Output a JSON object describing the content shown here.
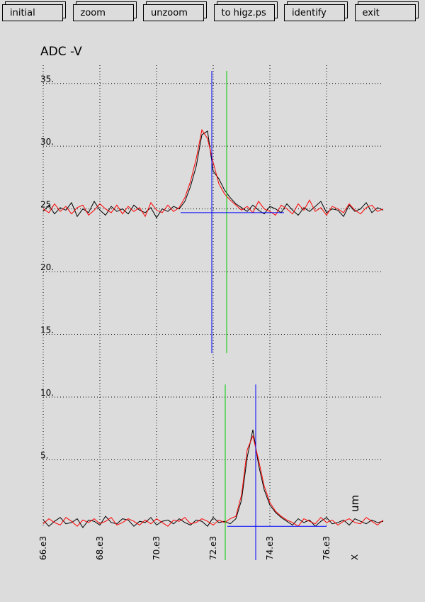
{
  "buttons": [
    "initial",
    "zoom",
    "unzoom",
    "to higz.ps",
    "identify",
    "exit"
  ],
  "chart_data": {
    "type": "line",
    "title": "ADC  -V",
    "xlabel": "X",
    "xunit": "um",
    "xlim": [
      66000,
      78000
    ],
    "ylim": [
      -3,
      36
    ],
    "grid": true,
    "xticks": [
      {
        "value": 66000,
        "label": "66.e3"
      },
      {
        "value": 68000,
        "label": "68.e3"
      },
      {
        "value": 70000,
        "label": "70.e3"
      },
      {
        "value": 72000,
        "label": "72.e3"
      },
      {
        "value": 74000,
        "label": "74.e3"
      },
      {
        "value": 76000,
        "label": "76.e3"
      }
    ],
    "yticks": [
      {
        "value": 5,
        "label": "5."
      },
      {
        "value": 10,
        "label": "10."
      },
      {
        "value": 15,
        "label": "15."
      },
      {
        "value": 20,
        "label": "20."
      },
      {
        "value": 25,
        "label": "25."
      },
      {
        "value": 30,
        "label": "30."
      },
      {
        "value": 35,
        "label": "35."
      }
    ],
    "x": [
      66000,
      66200,
      66400,
      66600,
      66800,
      67000,
      67200,
      67400,
      67600,
      67800,
      68000,
      68200,
      68400,
      68600,
      68800,
      69000,
      69200,
      69400,
      69600,
      69800,
      70000,
      70200,
      70400,
      70600,
      70800,
      71000,
      71200,
      71400,
      71600,
      71800,
      72000,
      72200,
      72400,
      72600,
      72800,
      73000,
      73200,
      73400,
      73600,
      73800,
      74000,
      74200,
      74400,
      74600,
      74800,
      75000,
      75200,
      75400,
      75600,
      75800,
      76000,
      76200,
      76400,
      76600,
      76800,
      77000,
      77200,
      77400,
      77600,
      77800,
      78000
    ],
    "series": [
      {
        "color": "#000000",
        "values": [
          24.8,
          25.3,
          24.6,
          25.1,
          24.9,
          25.5,
          24.4,
          25.0,
          24.7,
          25.6,
          24.9,
          24.5,
          25.2,
          24.8,
          25.0,
          24.6,
          25.3,
          24.9,
          24.7,
          25.1,
          24.3,
          25.0,
          24.8,
          25.2,
          25.0,
          25.6,
          26.8,
          28.4,
          30.9,
          31.2,
          28.0,
          27.4,
          26.5,
          25.9,
          25.4,
          25.1,
          24.8,
          25.3,
          24.9,
          24.6,
          25.2,
          25.0,
          24.7,
          25.4,
          24.9,
          24.5,
          25.1,
          24.8,
          25.2,
          25.6,
          24.7,
          25.0,
          24.9,
          24.4,
          25.3,
          24.8,
          25.0,
          25.5,
          24.7,
          25.1,
          24.9
        ]
      },
      {
        "color": "#ff0000",
        "values": [
          25.0,
          24.7,
          25.4,
          24.8,
          25.2,
          24.6,
          25.1,
          25.3,
          24.5,
          24.9,
          25.4,
          25.0,
          24.7,
          25.3,
          24.6,
          25.2,
          24.8,
          25.1,
          24.4,
          25.5,
          24.9,
          24.7,
          25.3,
          24.8,
          25.1,
          25.9,
          27.2,
          29.0,
          31.3,
          30.6,
          28.7,
          27.0,
          26.2,
          25.7,
          25.3,
          24.9,
          25.2,
          24.7,
          25.6,
          25.0,
          24.8,
          24.5,
          25.3,
          25.0,
          24.6,
          25.4,
          24.9,
          25.7,
          24.8,
          25.1,
          24.5,
          25.2,
          25.0,
          24.7,
          25.4,
          24.9,
          24.6,
          25.1,
          25.3,
          24.8,
          25.0
        ]
      },
      {
        "color": "#000000",
        "values": [
          0.2,
          -0.3,
          0.1,
          0.4,
          -0.1,
          0.0,
          0.3,
          -0.4,
          0.2,
          0.1,
          -0.2,
          0.5,
          0.0,
          -0.1,
          0.3,
          0.2,
          -0.3,
          0.1,
          0.0,
          0.4,
          -0.2,
          0.1,
          0.2,
          -0.1,
          0.3,
          0.0,
          -0.2,
          0.2,
          0.1,
          -0.3,
          0.4,
          0.0,
          0.1,
          -0.1,
          0.3,
          1.8,
          5.2,
          7.4,
          4.6,
          2.6,
          1.4,
          0.8,
          0.4,
          0.1,
          -0.2,
          0.3,
          0.0,
          0.2,
          -0.3,
          0.1,
          0.4,
          -0.1,
          0.0,
          0.2,
          -0.2,
          0.3,
          0.1,
          -0.1,
          0.2,
          0.0,
          0.1
        ]
      },
      {
        "color": "#ff0000",
        "values": [
          -0.1,
          0.3,
          0.0,
          -0.2,
          0.4,
          0.1,
          -0.3,
          0.2,
          0.0,
          0.3,
          -0.1,
          0.1,
          0.4,
          -0.2,
          0.0,
          0.3,
          0.1,
          -0.2,
          0.2,
          -0.1,
          0.3,
          0.0,
          -0.3,
          0.2,
          0.1,
          0.4,
          -0.1,
          0.0,
          0.3,
          0.1,
          -0.2,
          0.2,
          0.0,
          0.3,
          0.5,
          2.2,
          5.8,
          6.9,
          5.0,
          2.9,
          1.6,
          0.9,
          0.5,
          0.2,
          0.0,
          -0.3,
          0.3,
          0.1,
          -0.1,
          0.4,
          0.0,
          0.2,
          -0.2,
          0.1,
          0.3,
          0.0,
          -0.1,
          0.4,
          0.1,
          -0.2,
          0.2
        ]
      }
    ],
    "vcursors": [
      {
        "color": "#0000ff",
        "x": 71950,
        "ylim": [
          13.5,
          36
        ]
      },
      {
        "color": "#00cc00",
        "x": 72475,
        "ylim": [
          13.5,
          36
        ]
      },
      {
        "color": "#00cc00",
        "x": 72425,
        "ylim": [
          -3,
          11
        ]
      },
      {
        "color": "#0000ff",
        "x": 73500,
        "ylim": [
          -3,
          11
        ]
      }
    ],
    "hcursors": [
      {
        "color": "#0000ff",
        "y": 24.7,
        "xlim": [
          70850,
          74500
        ]
      },
      {
        "color": "#0000ff",
        "y": -0.3,
        "xlim": [
          72500,
          76000
        ]
      }
    ]
  }
}
